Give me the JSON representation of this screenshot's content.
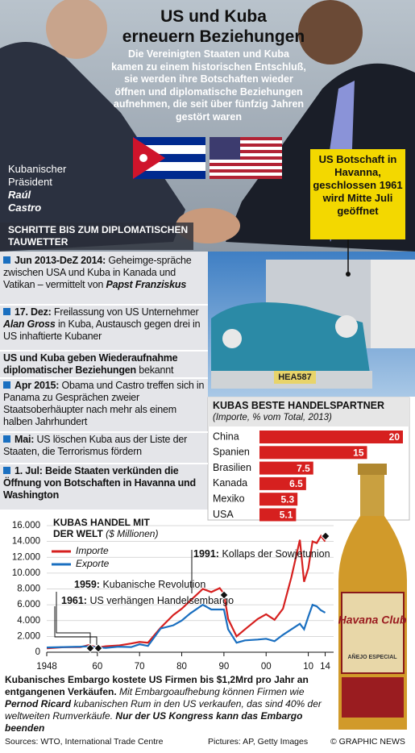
{
  "header": {
    "title_line1": "US und Kuba",
    "title_line2": "erneuern Beziehungen",
    "description": "Die Vereinigten Staaten und Kuba kamen zu einem historischen Entschluß, sie werden ihre Botschaften wieder öffnen und diplomatische Beziehungen aufnehmen, die seit über fünfzig Jahren gestört waren"
  },
  "castro": {
    "role": "Kubanischer Präsident",
    "name_first": "Raúl",
    "name_last": "Castro"
  },
  "callout": "US Botschaft in Havanna, geschlossen 1961 wird Mitte Juli geöffnet",
  "plate": "HEA587",
  "timeline": {
    "title": "SCHRITTE BIS ZUM DIPLOMATISCHEN TAUWETTER",
    "items": [
      [
        {
          "t": "Jun 2013-DeZ 2014:",
          "s": "b"
        },
        {
          "t": " Geheimge-spräche zwischen USA und Kuba in Kanada und Vatikan – vermittelt von ",
          "s": "n"
        },
        {
          "t": "Papst Franziskus",
          "s": "bi"
        }
      ],
      [
        {
          "t": "17. Dez:",
          "s": "b"
        },
        {
          "t": " Freilassung von US Unternehmer ",
          "s": "n"
        },
        {
          "t": "Alan Gross",
          "s": "bi"
        },
        {
          "t": " in Kuba, Austausch gegen drei in US inhaftierte Kubaner",
          "s": "n"
        }
      ],
      [
        {
          "t": "US und Kuba geben Wiederaufnahme diplomatischer Beziehungen",
          "s": "b"
        },
        {
          "t": " bekannt",
          "s": "n"
        }
      ],
      [
        {
          "t": "Apr 2015:",
          "s": "b"
        },
        {
          "t": " Obama und Castro treffen sich in Panama zu Gesprächen zweier Staatsoberhäupter nach mehr als einem halben Jahrhundert",
          "s": "n"
        }
      ],
      [
        {
          "t": "Mai:",
          "s": "b"
        },
        {
          "t": " US löschen Kuba aus der Liste der Staaten, die Terrorismus fördern",
          "s": "n"
        }
      ],
      [
        {
          "t": "1. Jul: Beide Staaten verkünden die Öffnung von Botschaften in Havanna und Washington",
          "s": "b"
        }
      ]
    ]
  },
  "chart_data": [
    {
      "type": "bar",
      "title": "KUBAS BESTE HANDELSPARTNER",
      "subtitle": "(Importe, % vom Total, 2013)",
      "categories": [
        "China",
        "Spanien",
        "Brasilien",
        "Kanada",
        "Mexiko",
        "USA"
      ],
      "values": [
        20,
        15,
        7.5,
        6.5,
        5.3,
        5.1
      ],
      "color": "#d6201f",
      "xlim": [
        0,
        20
      ]
    },
    {
      "type": "line",
      "title": "KUBAS HANDEL MIT DER WELT",
      "subtitle": "($ Millionen)",
      "x": [
        1948,
        1952,
        1956,
        1958,
        1960,
        1962,
        1965,
        1968,
        1970,
        1972,
        1975,
        1978,
        1980,
        1982,
        1985,
        1987,
        1989,
        1990,
        1991,
        1993,
        1995,
        1998,
        2000,
        2002,
        2004,
        2006,
        2008,
        2009,
        2010,
        2011,
        2012,
        2013,
        2014
      ],
      "series": [
        {
          "name": "Importe",
          "color": "#d6201f",
          "values": [
            500,
            640,
            650,
            900,
            600,
            750,
            850,
            1100,
            1300,
            1200,
            3100,
            4700,
            5500,
            6500,
            8000,
            7600,
            8100,
            7400,
            4200,
            2000,
            2900,
            4200,
            4800,
            4100,
            5500,
            9500,
            14200,
            8900,
            10600,
            14000,
            13800,
            14700,
            14000
          ]
        },
        {
          "name": "Exporte",
          "color": "#1a6fc0",
          "values": [
            600,
            650,
            700,
            750,
            600,
            550,
            700,
            650,
            1000,
            800,
            3000,
            3400,
            4000,
            4900,
            6000,
            5400,
            5400,
            5400,
            2900,
            1200,
            1500,
            1600,
            1700,
            1400,
            2200,
            2900,
            3600,
            2900,
            4500,
            6000,
            5800,
            5300,
            5000
          ]
        }
      ],
      "xlim": [
        1948,
        2016
      ],
      "xticks": [
        1948,
        {
          "value": 1960,
          "label": "60"
        },
        {
          "value": 1970,
          "label": "70"
        },
        {
          "value": 1980,
          "label": "80"
        },
        {
          "value": 1990,
          "label": "90"
        },
        {
          "value": 2000,
          "label": "00"
        },
        {
          "value": 2010,
          "label": "10"
        },
        {
          "value": 2014,
          "label": "14"
        }
      ],
      "ylim": [
        0,
        16000
      ],
      "yticks": [
        0,
        {
          "value": 2000,
          "label": "2.000"
        },
        {
          "value": 4000,
          "label": "4.000"
        },
        {
          "value": 6000,
          "label": "6.000"
        },
        {
          "value": 8000,
          "label": "8.000"
        },
        {
          "value": 10000,
          "label": "10.000"
        },
        {
          "value": 12000,
          "label": "12.000"
        },
        {
          "value": 14000,
          "label": "14.000"
        },
        {
          "value": 16000,
          "label": "16.000"
        }
      ],
      "grid": true,
      "annotations": [
        {
          "year": "1959:",
          "text": " Kubanische Revolution"
        },
        {
          "year": "1961:",
          "text": " US verhängen Handelsembargo"
        },
        {
          "year": "1991:",
          "text": " Kollaps der Sowjetunion"
        }
      ]
    }
  ],
  "bottle": {
    "brand": "Havana Club",
    "sub": "AÑEJO ESPECIAL"
  },
  "footer": [
    {
      "t": "Kubanisches Embargo kostete US Firmen bis $1,2Mrd pro Jahr an entgangenen Verkäufen.",
      "s": "b"
    },
    {
      "t": " Mit Embargoaufhebung können Firmen wie ",
      "s": "i"
    },
    {
      "t": "Pernod Ricard",
      "s": "bi"
    },
    {
      "t": " kubanischen Rum in den US verkaufen, das sind 40% der weltweiten Rumverkäufe.",
      "s": "i"
    },
    {
      "t": " Nur der US Kongress kann das Embargo beenden",
      "s": "bi"
    }
  ],
  "sources": {
    "left": "Sources: WTO, International Trade Centre",
    "mid": "Pictures: AP, Getty Images",
    "right": "© GRAPHIC NEWS"
  }
}
